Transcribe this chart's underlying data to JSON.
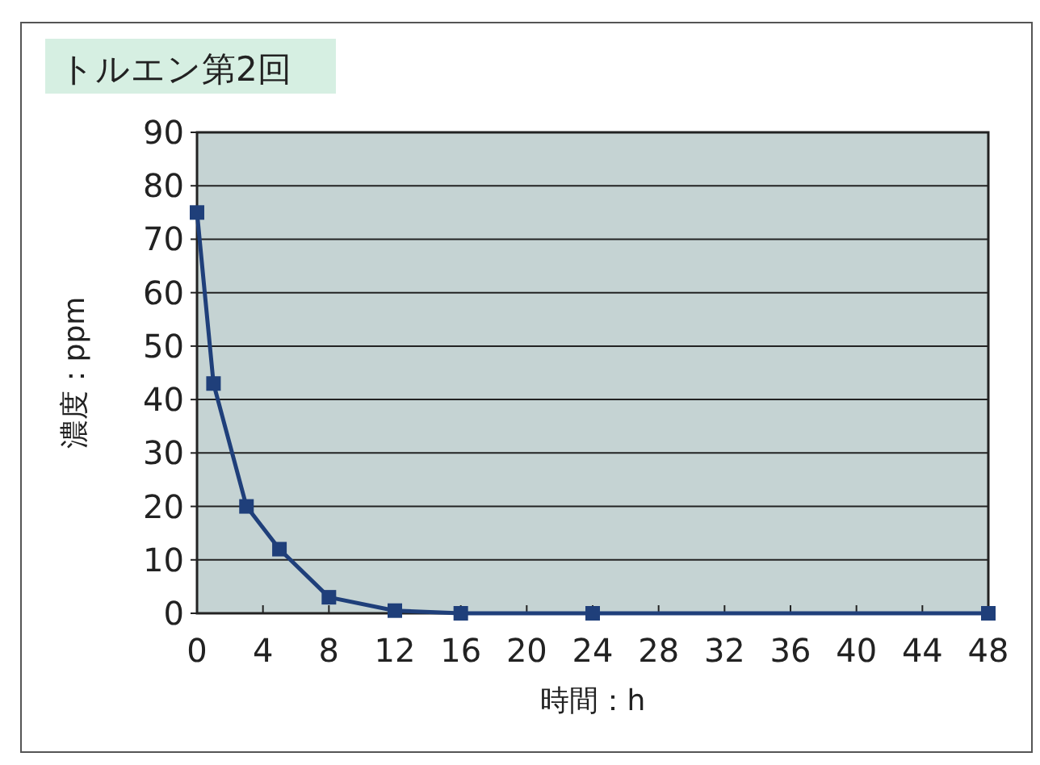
{
  "chart_data": {
    "type": "line",
    "title": "トルエン第2回",
    "xlabel": "時間：h",
    "ylabel": "濃度：ppm",
    "x": [
      0,
      1,
      3,
      5,
      8,
      12,
      16,
      24,
      48
    ],
    "series": [
      {
        "color": "#1f3f7a",
        "values": [
          75,
          43,
          20,
          12,
          3,
          0.5,
          0,
          0,
          0
        ]
      }
    ],
    "xlim": [
      0,
      48
    ],
    "xticks": [
      0,
      4,
      8,
      12,
      16,
      20,
      24,
      28,
      32,
      36,
      40,
      44,
      48
    ],
    "ylim": [
      0,
      90
    ],
    "yticks": [
      0,
      10,
      20,
      30,
      40,
      50,
      60,
      70,
      80,
      90
    ],
    "grid": "y",
    "marker": "square",
    "line_style": "solid"
  }
}
